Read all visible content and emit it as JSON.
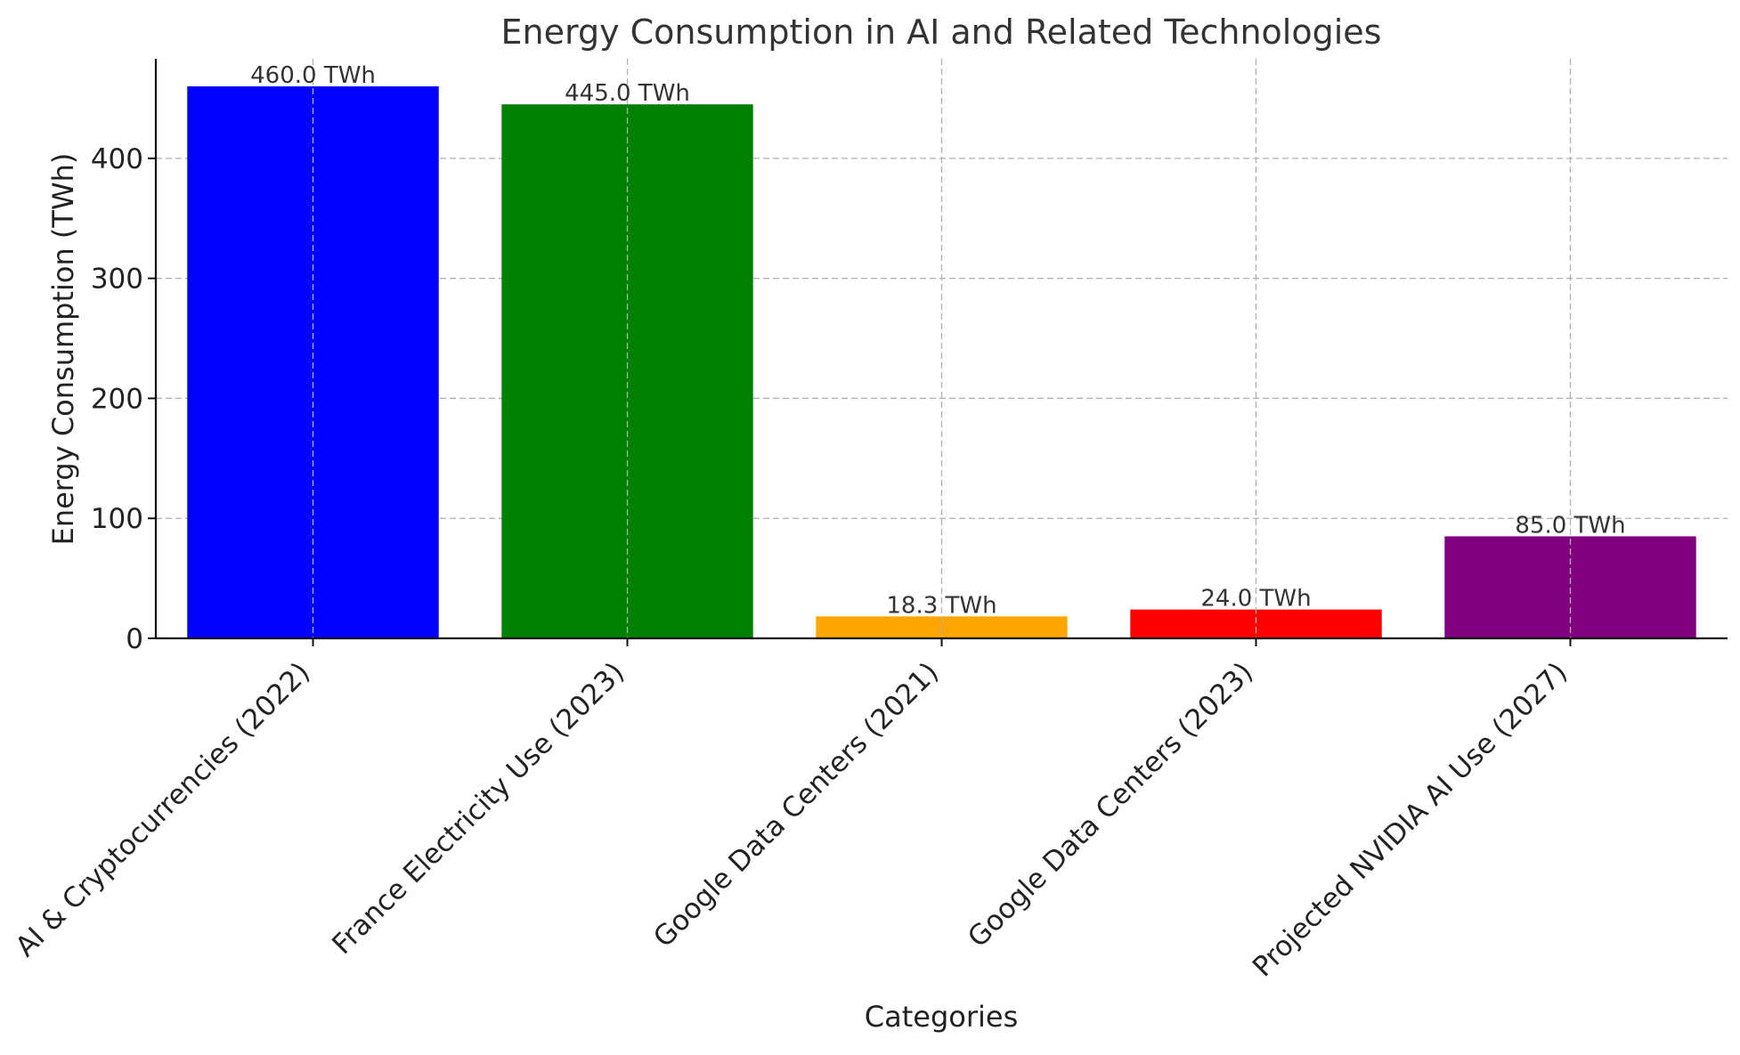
{
  "chart_data": {
    "type": "bar",
    "title": "Energy Consumption in AI and Related Technologies",
    "xlabel": "Categories",
    "ylabel": "Energy Consumption (TWh)",
    "categories": [
      "AI & Cryptocurrencies (2022)",
      "France Electricity Use (2023)",
      "Google Data Centers (2021)",
      "Google Data Centers (2023)",
      "Projected NVIDIA AI Use (2027)"
    ],
    "values": [
      460.0,
      445.0,
      18.3,
      24.0,
      85.0
    ],
    "data_labels": [
      "460.0 TWh",
      "445.0 TWh",
      "18.3 TWh",
      "24.0 TWh",
      "85.0 TWh"
    ],
    "colors": [
      "#0000ff",
      "#008000",
      "#ffa500",
      "#ff0000",
      "#800080"
    ],
    "ylim": [
      0,
      483
    ],
    "yticks": [
      0,
      100,
      200,
      300,
      400
    ],
    "grid": true,
    "legend": "none"
  }
}
